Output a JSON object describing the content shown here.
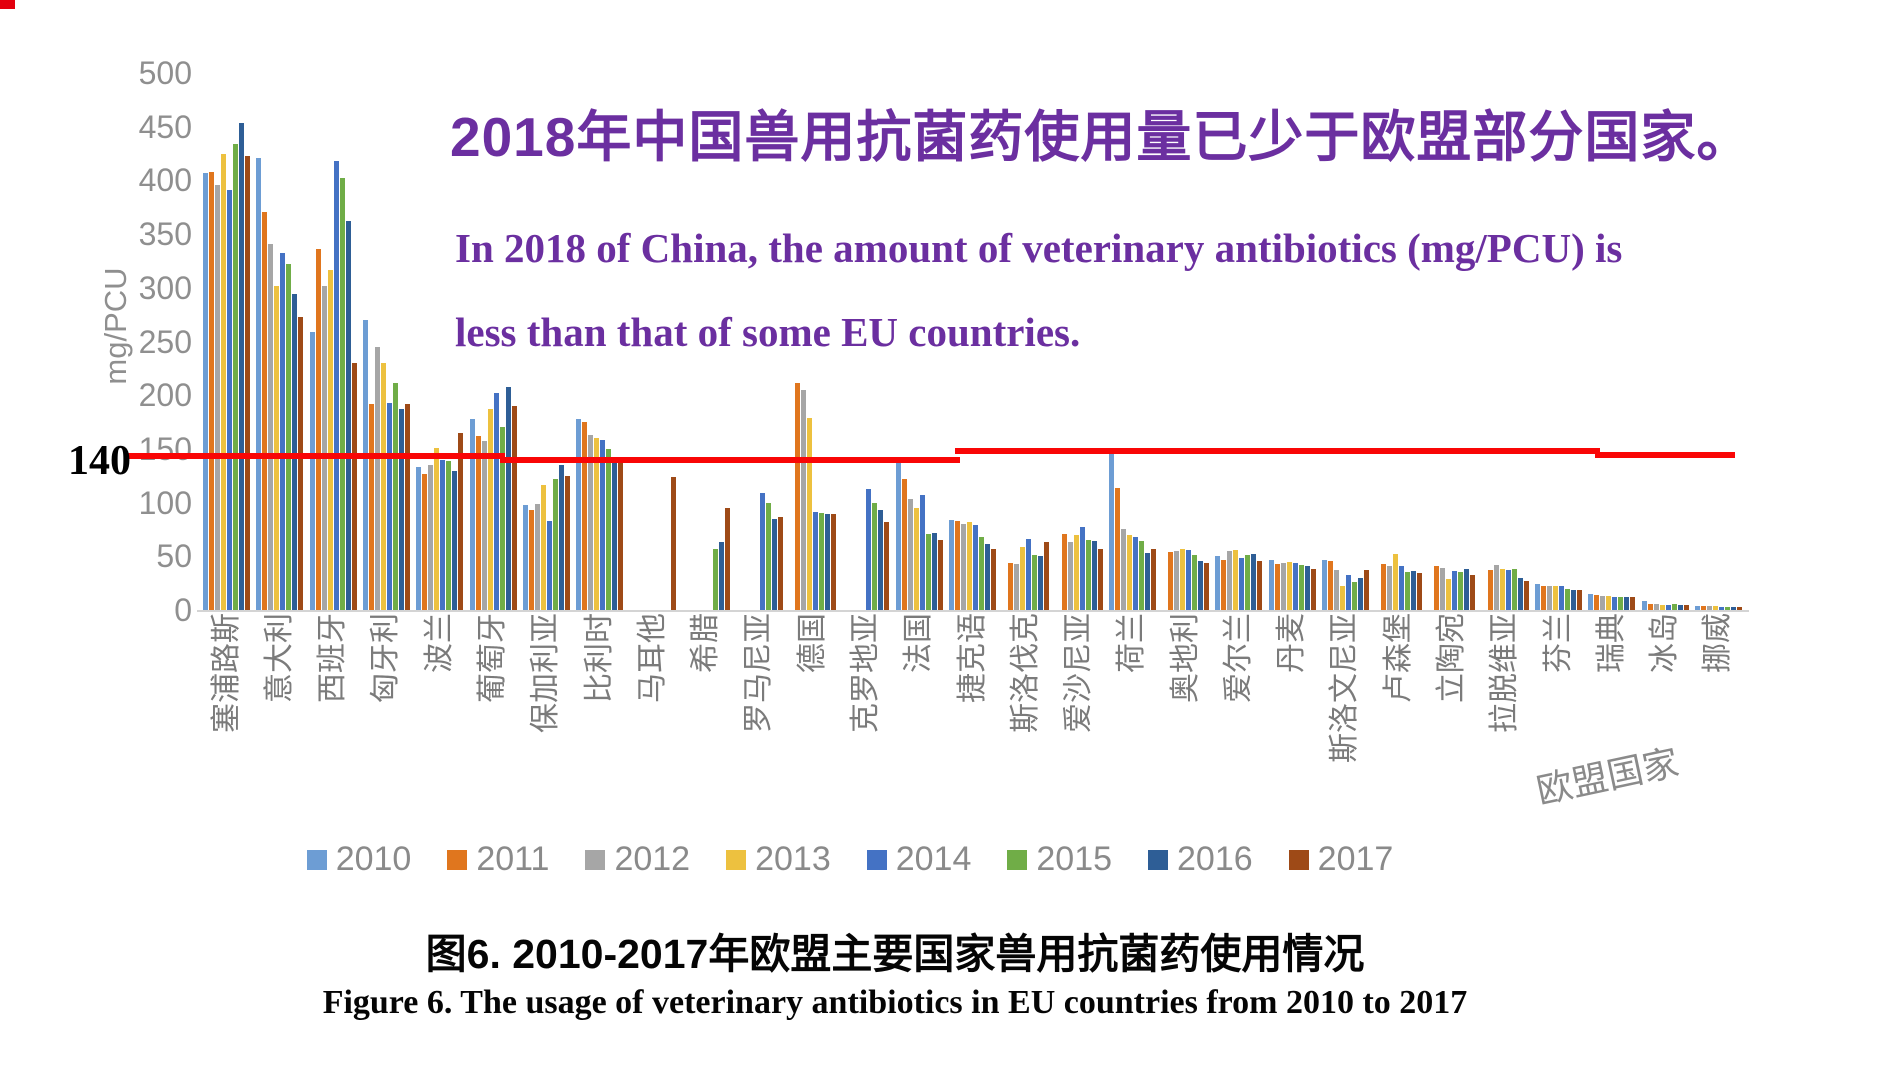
{
  "overlay": {
    "title_cn": "2018年中国兽用抗菌药使用量已少于欧盟部分国家。",
    "subtitle_en_line1": "In 2018 of China, the amount of veterinary antibiotics (mg/PCU) is",
    "subtitle_en_line2": "less than that of some EU countries.",
    "title_color": "#6b2fa0"
  },
  "caption": {
    "line1_cn": "图6. 2010-2017年欧盟主要国家兽用抗菌药使用情况",
    "line2_en": "Figure 6. The usage of veterinary antibiotics in EU countries from 2010 to 2017"
  },
  "chart_data": {
    "type": "bar",
    "title": "",
    "xlabel": "",
    "ylabel": "mg/PCU",
    "xaxis_title": "欧盟国家",
    "ylim": [
      0,
      500
    ],
    "yticks": [
      0,
      50,
      100,
      150,
      200,
      250,
      300,
      350,
      400,
      450,
      500
    ],
    "grid": false,
    "legend_position": "bottom",
    "threshold_line": {
      "value": 140,
      "label": "140",
      "color": "#f90606"
    },
    "categories": [
      "塞浦路斯",
      "意大利",
      "西班牙",
      "匈牙利",
      "波兰",
      "葡萄牙",
      "保加利亚",
      "比利时",
      "马耳他",
      "希腊",
      "罗马尼亚",
      "德国",
      "克罗地亚",
      "法国",
      "捷克语",
      "斯洛伐克",
      "爱沙尼亚",
      "荷兰",
      "奥地利",
      "爱尔兰",
      "丹麦",
      "斯洛文尼亚",
      "卢森堡",
      "立陶宛",
      "拉脱维亚",
      "芬兰",
      "瑞典",
      "冰岛",
      "挪威"
    ],
    "series": [
      {
        "name": "2010",
        "color": "#6d9dd4",
        "values": [
          407,
          421,
          259,
          270,
          133,
          178,
          98,
          178,
          null,
          null,
          null,
          null,
          null,
          141,
          84,
          null,
          null,
          146,
          null,
          50,
          47,
          47,
          null,
          null,
          null,
          24,
          15,
          8,
          4
        ]
      },
      {
        "name": "2011",
        "color": "#e0761e",
        "values": [
          408,
          371,
          336,
          192,
          127,
          162,
          93,
          175,
          null,
          null,
          null,
          211,
          null,
          122,
          83,
          44,
          71,
          114,
          54,
          47,
          43,
          46,
          43,
          41,
          37,
          22,
          14,
          6,
          4
        ]
      },
      {
        "name": "2012",
        "color": "#a6a6a6",
        "values": [
          396,
          341,
          302,
          245,
          135,
          157,
          99,
          163,
          null,
          null,
          null,
          205,
          null,
          103,
          80,
          43,
          63,
          75,
          55,
          55,
          44,
          37,
          41,
          39,
          42,
          22,
          13,
          6,
          4
        ]
      },
      {
        "name": "2013",
        "color": "#edc13f",
        "values": [
          425,
          302,
          317,
          230,
          151,
          187,
          116,
          160,
          null,
          null,
          null,
          179,
          null,
          95,
          82,
          59,
          70,
          70,
          57,
          56,
          45,
          22,
          52,
          29,
          38,
          22,
          13,
          5,
          4
        ]
      },
      {
        "name": "2014",
        "color": "#4472c4",
        "values": [
          391,
          332,
          418,
          193,
          140,
          202,
          83,
          158,
          null,
          null,
          109,
          91,
          113,
          107,
          79,
          66,
          77,
          68,
          56,
          48,
          44,
          33,
          41,
          36,
          37,
          22,
          12,
          5,
          3
        ]
      },
      {
        "name": "2015",
        "color": "#70ad47",
        "values": [
          434,
          322,
          402,
          211,
          139,
          170,
          122,
          150,
          null,
          57,
          100,
          90,
          100,
          71,
          68,
          51,
          65,
          64,
          51,
          51,
          42,
          26,
          35,
          35,
          38,
          20,
          12,
          6,
          3
        ]
      },
      {
        "name": "2016",
        "color": "#2e5e96",
        "values": [
          453,
          294,
          362,
          187,
          129,
          208,
          135,
          140,
          null,
          63,
          85,
          89,
          93,
          72,
          61,
          50,
          64,
          53,
          46,
          52,
          41,
          30,
          36,
          38,
          30,
          19,
          12,
          5,
          3
        ]
      },
      {
        "name": "2017",
        "color": "#9e4a17",
        "values": [
          423,
          273,
          230,
          192,
          165,
          190,
          125,
          138,
          124,
          95,
          87,
          89,
          82,
          65,
          57,
          63,
          57,
          57,
          44,
          46,
          38,
          37,
          34,
          33,
          27,
          19,
          12,
          5,
          3
        ]
      }
    ]
  }
}
